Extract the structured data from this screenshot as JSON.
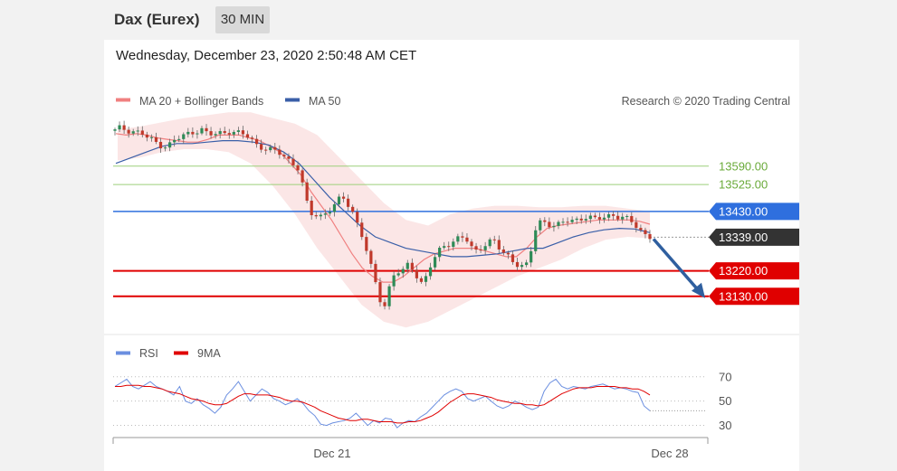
{
  "header": {
    "title": "Dax (Eurex)",
    "timeframe": "30 MIN"
  },
  "timestamp": "Wednesday, December 23, 2020 2:50:48 AM CET",
  "legend": {
    "ma20": "MA 20 + Bollinger Bands",
    "ma50": "MA 50",
    "credit": "Research © 2020 Trading Central"
  },
  "rsi_legend": {
    "rsi": "RSI",
    "ma9": "9MA"
  },
  "colors": {
    "ma20": "#f08080",
    "ma50": "#3a5fa8",
    "band": "#fadede",
    "up": "#2e8b57",
    "down": "#c0392b",
    "green_level": "#6aaa3a",
    "blue_level": "#2f6fde",
    "red_level": "#e00000",
    "current": "#333333",
    "arrow": "#2f5f9f"
  },
  "chart_data": [
    {
      "type": "candlestick",
      "title": "Dax (Eurex) 30 MIN",
      "x_ticks": [
        "Dec 21",
        "Dec 28"
      ],
      "ylim": [
        12995,
        13845
      ],
      "levels": [
        {
          "value": 13590.0,
          "label": "13590.00",
          "kind": "resistance",
          "style": "green"
        },
        {
          "value": 13525.0,
          "label": "13525.00",
          "kind": "resistance",
          "style": "green"
        },
        {
          "value": 13430.0,
          "label": "13430.00",
          "kind": "pivot",
          "style": "blue"
        },
        {
          "value": 13339.0,
          "label": "13339.00",
          "kind": "current",
          "style": "dark"
        },
        {
          "value": 13220.0,
          "label": "13220.00",
          "kind": "support",
          "style": "red"
        },
        {
          "value": 13130.0,
          "label": "13130.00",
          "kind": "support",
          "style": "red"
        }
      ],
      "close_path": [
        13715,
        13725,
        13720,
        13715,
        13712,
        13705,
        13690,
        13680,
        13670,
        13660,
        13665,
        13680,
        13690,
        13700,
        13710,
        13715,
        13720,
        13705,
        13700,
        13705,
        13710,
        13715,
        13710,
        13705,
        13700,
        13690,
        13670,
        13660,
        13650,
        13645,
        13640,
        13630,
        13615,
        13600,
        13580,
        13500,
        13420,
        13420,
        13415,
        13425,
        13440,
        13460,
        13480,
        13460,
        13430,
        13380,
        13330,
        13260,
        13190,
        13120,
        13100,
        13180,
        13220,
        13210,
        13240,
        13230,
        13200,
        13170,
        13220,
        13260,
        13290,
        13310,
        13320,
        13330,
        13340,
        13330,
        13300,
        13290,
        13310,
        13320,
        13330,
        13300,
        13280,
        13270,
        13250,
        13240,
        13230,
        13290,
        13380,
        13400,
        13390,
        13380,
        13380,
        13390,
        13400,
        13400,
        13405,
        13410,
        13405,
        13400,
        13410,
        13415,
        13420,
        13410,
        13405,
        13400,
        13390,
        13370,
        13350,
        13339
      ],
      "ma20_path": [
        13705,
        13700,
        13705,
        13700,
        13690,
        13685,
        13680,
        13675,
        13675,
        13685,
        13700,
        13700,
        13700,
        13690,
        13680,
        13660,
        13640,
        13600,
        13560,
        13500,
        13450,
        13400,
        13340,
        13280,
        13230,
        13200,
        13180,
        13180,
        13200,
        13230,
        13260,
        13280,
        13290,
        13300,
        13300,
        13300,
        13290,
        13280,
        13270,
        13270,
        13300,
        13340,
        13370,
        13380,
        13385,
        13390,
        13395,
        13400,
        13400,
        13400,
        13400,
        13395,
        13385
      ],
      "ma50_path": [
        13600,
        13620,
        13640,
        13660,
        13670,
        13670,
        13675,
        13680,
        13680,
        13675,
        13665,
        13640,
        13600,
        13540,
        13480,
        13430,
        13380,
        13340,
        13320,
        13300,
        13290,
        13280,
        13270,
        13270,
        13275,
        13280,
        13290,
        13300,
        13300,
        13320,
        13340,
        13355,
        13365,
        13370,
        13368,
        13355
      ],
      "bb_upper": [
        13720,
        13730,
        13745,
        13760,
        13770,
        13780,
        13780,
        13760,
        13740,
        13700,
        13620,
        13540,
        13460,
        13400,
        13380,
        13420,
        13440,
        13450,
        13450,
        13445,
        13445,
        13450,
        13450,
        13440,
        13430
      ],
      "bb_lower": [
        13610,
        13620,
        13640,
        13650,
        13650,
        13640,
        13600,
        13520,
        13420,
        13300,
        13200,
        13100,
        13040,
        13020,
        13040,
        13080,
        13120,
        13160,
        13200,
        13230,
        13260,
        13300,
        13330,
        13340,
        13335
      ],
      "forecast": {
        "from": 13339,
        "to": 13130
      }
    },
    {
      "type": "line",
      "title": "RSI",
      "y_ticks": [
        70,
        50,
        30
      ],
      "ylim": [
        20,
        78
      ],
      "series": [
        {
          "name": "RSI",
          "values": [
            62,
            65,
            68,
            62,
            60,
            63,
            66,
            62,
            60,
            58,
            55,
            62,
            50,
            48,
            52,
            47,
            44,
            40,
            45,
            55,
            60,
            66,
            58,
            50,
            55,
            60,
            57,
            52,
            50,
            47,
            49,
            52,
            48,
            42,
            38,
            31,
            30,
            32,
            33,
            34,
            36,
            40,
            35,
            30,
            34,
            32,
            36,
            35,
            28,
            32,
            34,
            33,
            37,
            40,
            45,
            50,
            55,
            58,
            60,
            58,
            52,
            50,
            52,
            54,
            50,
            46,
            44,
            46,
            50,
            48,
            45,
            43,
            45,
            58,
            65,
            68,
            62,
            60,
            62,
            61,
            60,
            62,
            63,
            64,
            62,
            60,
            61,
            60,
            58,
            57,
            46,
            42
          ]
        },
        {
          "name": "9MA",
          "values": [
            62,
            62,
            63,
            63,
            63,
            62,
            62,
            61,
            60,
            58,
            57,
            56,
            54,
            52,
            51,
            50,
            48,
            47,
            47,
            48,
            51,
            54,
            56,
            56,
            55,
            55,
            55,
            54,
            53,
            51,
            50,
            50,
            49,
            47,
            45,
            42,
            40,
            38,
            36,
            35,
            34,
            34,
            35,
            35,
            34,
            33,
            33,
            33,
            32,
            32,
            33,
            33,
            34,
            36,
            38,
            41,
            45,
            49,
            52,
            55,
            56,
            56,
            55,
            54,
            53,
            51,
            50,
            49,
            48,
            48,
            47,
            47,
            46,
            47,
            50,
            53,
            56,
            58,
            60,
            61,
            61,
            61,
            62,
            62,
            62,
            62,
            61,
            61,
            60,
            60,
            58,
            55
          ]
        }
      ]
    }
  ]
}
